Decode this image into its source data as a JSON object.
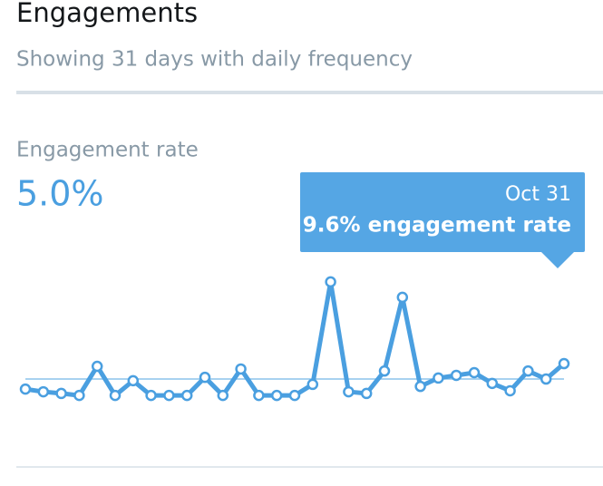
{
  "header": {
    "title": "Engagements",
    "subtitle": "Showing 31 days with daily frequency"
  },
  "chart_data": {
    "type": "line",
    "title": "Engagement rate",
    "average": {
      "value": 5.0,
      "label": "5.0%"
    },
    "categories": [
      null,
      null,
      null,
      null,
      null,
      null,
      null,
      null,
      null,
      null,
      null,
      null,
      null,
      null,
      null,
      null,
      null,
      null,
      null,
      null,
      null,
      null,
      null,
      null,
      null,
      null,
      null,
      null,
      null,
      null,
      "Oct 31"
    ],
    "values": [
      2.0,
      1.2,
      0.7,
      0.1,
      8.8,
      0.1,
      4.5,
      0.1,
      0.1,
      0.1,
      5.5,
      0.1,
      8.0,
      0.1,
      0.1,
      0.1,
      3.4,
      34.0,
      1.2,
      0.7,
      7.4,
      29.4,
      2.8,
      5.3,
      6.1,
      6.9,
      3.7,
      1.5,
      7.4,
      5.0,
      9.6
    ],
    "color": "#4a9fe0",
    "ylim": [
      0,
      40
    ],
    "tooltip": {
      "text": "9.6% engagement rate"
    }
  }
}
